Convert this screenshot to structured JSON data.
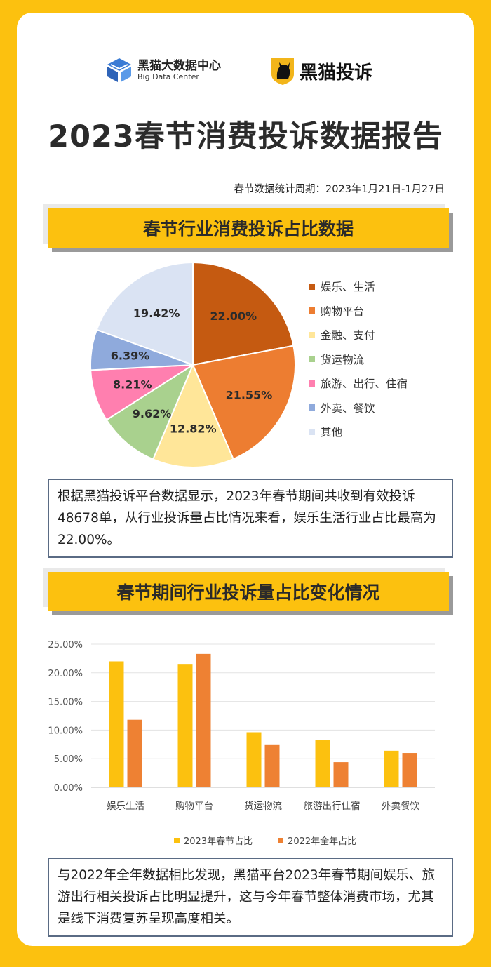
{
  "header": {
    "logo1_name": "黑猫大数据中心",
    "logo1_sub": "Big Data Center",
    "logo2_name": "黑猫投诉"
  },
  "title": "2023春节消费投诉数据报告",
  "period": "春节数据统计周期：2023年1月21日-1月27日",
  "section1": {
    "banner": "春节行业消费投诉占比数据",
    "note": "根据黑猫投诉平台数据显示，2023年春节期间共收到有效投诉48678单，从行业投诉量占比情况来看，娱乐生活行业占比最高为22.00%。"
  },
  "section2": {
    "banner": "春节期间行业投诉量占比变化情况",
    "note": "与2022年全年数据相比发现，黑猫平台2023年春节期间娱乐、旅游出行相关投诉占比明显提升，这与今年春节整体消费市场，尤其是线下消费复苏呈现高度相关。"
  },
  "colors": {
    "brand_yellow": "#FCC10F",
    "series_2023": "#FCC10F",
    "series_2022": "#EE8133"
  },
  "chart_data": [
    {
      "type": "pie",
      "labels": [
        "娱乐、生活",
        "购物平台",
        "金融、支付",
        "货运物流",
        "旅游、出行、住宿",
        "外卖、餐饮",
        "其他"
      ],
      "values": [
        22.0,
        21.55,
        12.82,
        9.62,
        8.21,
        6.39,
        19.42
      ],
      "value_labels": [
        "22.00%",
        "21.55%",
        "12.82%",
        "9.62%",
        "8.21%",
        "6.39%",
        "19.42%"
      ],
      "colors": [
        "#C55A11",
        "#ED7D31",
        "#FFE699",
        "#A9D18E",
        "#FF7FAF",
        "#8FAADC",
        "#DAE3F3"
      ],
      "legend_position": "right"
    },
    {
      "type": "bar",
      "categories": [
        "娱乐生活",
        "购物平台",
        "货运物流",
        "旅游出行住宿",
        "外卖餐饮"
      ],
      "series": [
        {
          "name": "2023年春节占比",
          "values": [
            22.0,
            21.55,
            9.62,
            8.21,
            6.39
          ]
        },
        {
          "name": "2022年全年占比",
          "values": [
            11.8,
            23.3,
            7.5,
            4.4,
            6.0
          ]
        }
      ],
      "yticks": [
        "25.00%",
        "20.00%",
        "15.00%",
        "10.00%",
        "5.00%",
        "0.00%"
      ],
      "ylim": [
        0,
        25
      ],
      "grid": true,
      "legend_position": "bottom"
    }
  ]
}
